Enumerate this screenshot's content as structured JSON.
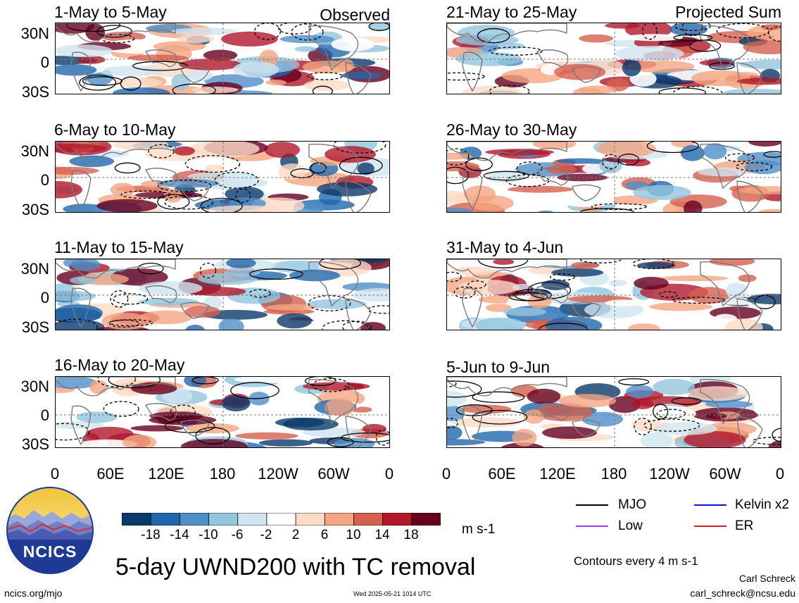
{
  "panels": {
    "observed_tag": "Observed",
    "projected_tag": "Projected Sum",
    "left": [
      {
        "title": "1-May to 5-May"
      },
      {
        "title": "6-May to 10-May"
      },
      {
        "title": "11-May to 15-May"
      },
      {
        "title": "16-May to 20-May"
      }
    ],
    "right": [
      {
        "title": "21-May to 25-May"
      },
      {
        "title": "26-May to 30-May"
      },
      {
        "title": "31-May to 4-Jun"
      },
      {
        "title": "5-Jun to 9-Jun"
      }
    ]
  },
  "axes": {
    "lat_labels": [
      "30N",
      "0",
      "30S"
    ],
    "lon_labels": [
      "0",
      "60E",
      "120E",
      "180",
      "120W",
      "60W",
      "0"
    ]
  },
  "colorbar": {
    "labels": [
      "-18",
      "-14",
      "-10",
      "-6",
      "-2",
      "2",
      "6",
      "10",
      "14",
      "18"
    ],
    "colors": [
      "#0a3a6b",
      "#2166ac",
      "#4f8fc8",
      "#92c5de",
      "#d1e5f0",
      "#ffffff",
      "#fddbc7",
      "#f4a582",
      "#d6604d",
      "#b2182b",
      "#67001f"
    ],
    "units": "m s-1"
  },
  "legend": {
    "items": [
      {
        "label": "MJO",
        "color": "#000000"
      },
      {
        "label": "Kelvin x2",
        "color": "#1010e0"
      },
      {
        "label": "Low",
        "color": "#a040e0"
      },
      {
        "label": "ER",
        "color": "#d02020"
      }
    ],
    "contours_note": "Contours every 4 m s-1"
  },
  "logo": {
    "text": "NCICS"
  },
  "footer": {
    "title": "5-day UWND200 with TC removal",
    "url": "ncics.org/mjo",
    "timestamp": "Wed 2025-05-21 1014 UTC",
    "author": "Carl Schreck",
    "email": "carl_schreck@ncsu.edu"
  }
}
